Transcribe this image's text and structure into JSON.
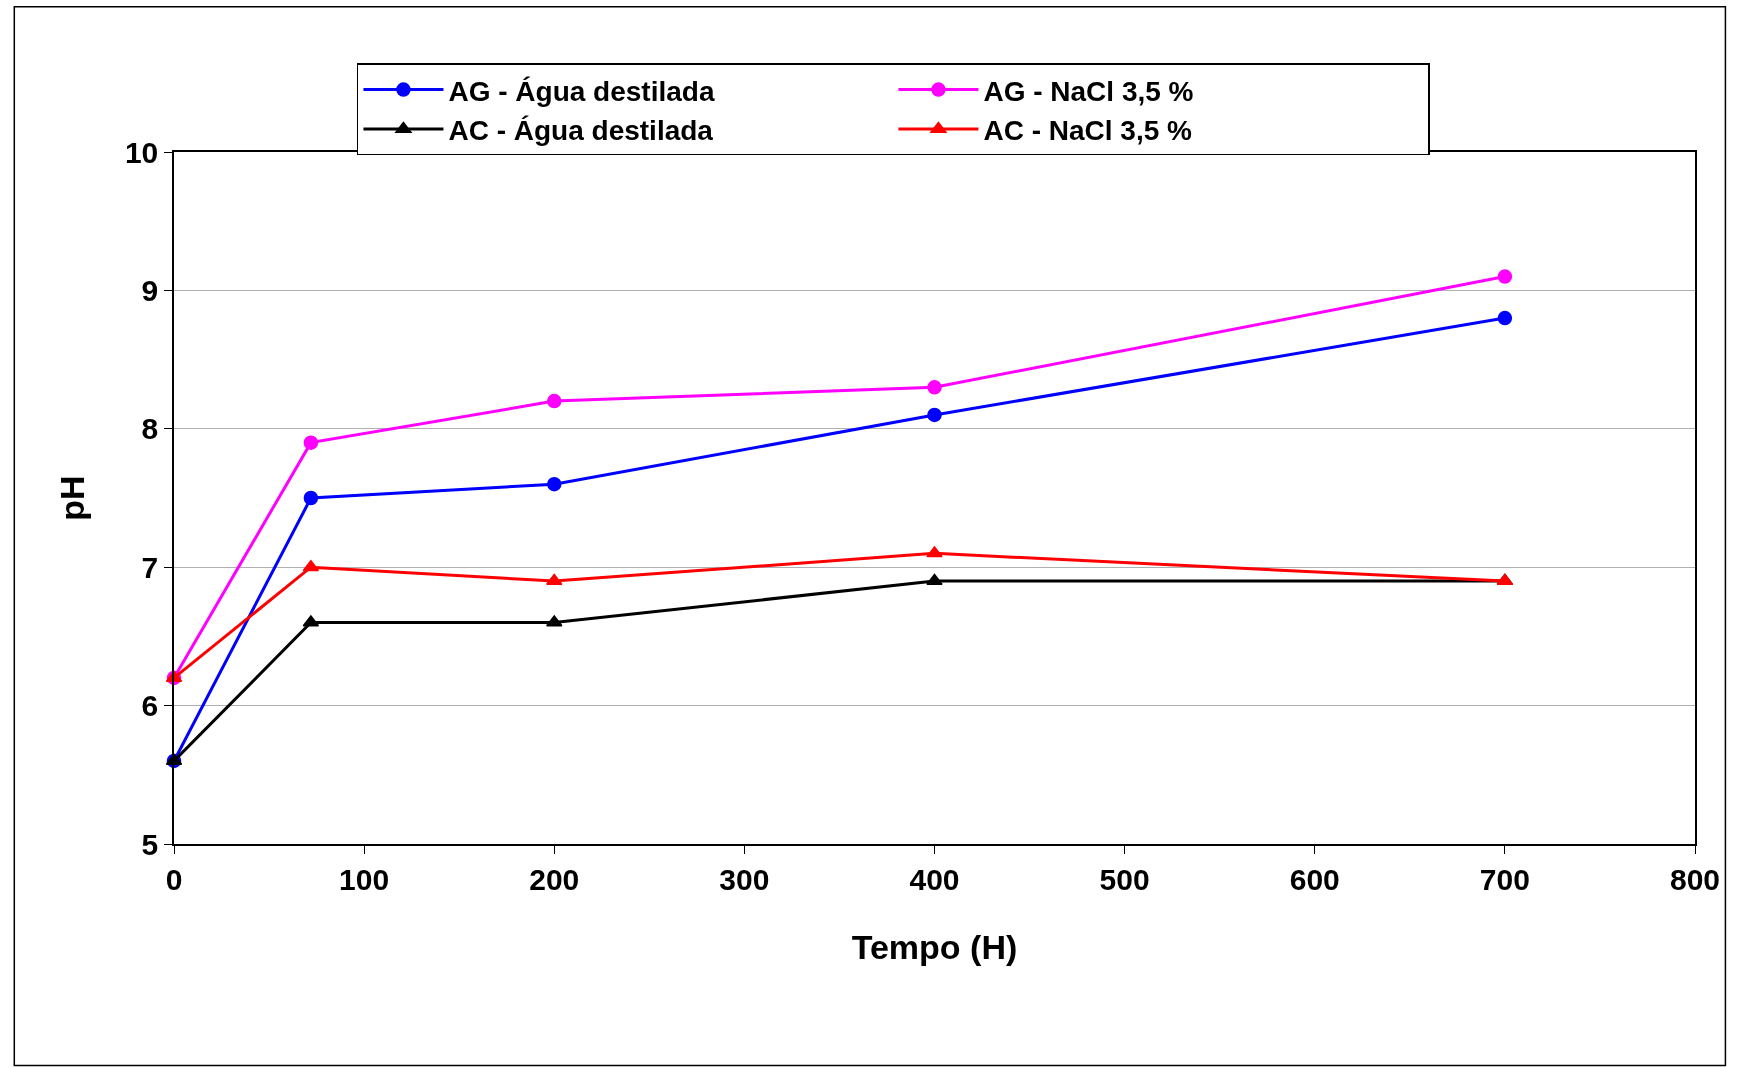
{
  "chart_data": {
    "type": "line",
    "xlabel": "Tempo (H)",
    "ylabel": "pH",
    "x": [
      0,
      72,
      200,
      400,
      700
    ],
    "series": [
      {
        "name": "AG - Água destilada",
        "color": "#0000ff",
        "marker": "circle",
        "values": [
          5.6,
          7.5,
          7.6,
          8.1,
          8.8
        ]
      },
      {
        "name": "AG - NaCl 3,5 %",
        "color": "#ff00ff",
        "marker": "circle",
        "values": [
          6.2,
          7.9,
          8.2,
          8.3,
          9.1
        ]
      },
      {
        "name": "AC - Água destilada",
        "color": "#000000",
        "marker": "triangle",
        "values": [
          5.6,
          6.6,
          6.6,
          6.9,
          6.9
        ]
      },
      {
        "name": "AC - NaCl 3,5 %",
        "color": "#ff0000",
        "marker": "triangle",
        "values": [
          6.2,
          7.0,
          6.9,
          7.1,
          6.9
        ]
      }
    ],
    "xlim": [
      0,
      800
    ],
    "xticks": [
      0,
      100,
      200,
      300,
      400,
      500,
      600,
      700,
      800
    ],
    "ylim": [
      5,
      10
    ],
    "yticks": [
      5,
      6,
      7,
      8,
      9,
      10
    ],
    "grid": "y",
    "legend": "top",
    "line_style": "solid"
  }
}
